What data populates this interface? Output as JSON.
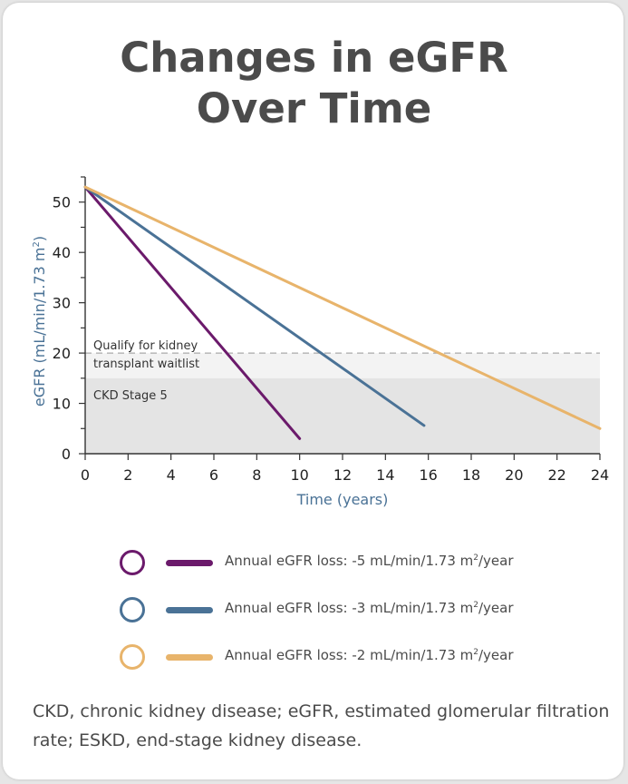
{
  "title_line1": "Changes in eGFR",
  "title_line2": "Over Time",
  "chart_data": {
    "type": "line",
    "xlabel": "Time (years)",
    "ylabel_main": "eGFR (mL/min/1.73 m",
    "ylabel_sup": "2",
    "ylabel_tail": ")",
    "xlim": [
      0,
      24
    ],
    "ylim": [
      0,
      55
    ],
    "xticks": [
      0,
      2,
      4,
      6,
      8,
      10,
      12,
      14,
      16,
      18,
      20,
      22,
      24
    ],
    "yticks": [
      0,
      10,
      20,
      30,
      40,
      50
    ],
    "series": [
      {
        "points": [
          [
            0,
            53
          ],
          [
            10,
            3
          ]
        ],
        "color": "#6b1a6b"
      },
      {
        "points": [
          [
            0,
            53
          ],
          [
            15.8,
            5.6
          ]
        ],
        "color": "#4a7296"
      },
      {
        "points": [
          [
            0,
            53
          ],
          [
            24,
            5
          ]
        ],
        "color": "#e8b46b"
      }
    ],
    "regions": [
      {
        "label_line1": "Qualify for kidney",
        "label_line2": "transplant waitlist",
        "y0": 15,
        "y1": 20,
        "color": "#f3f3f3"
      },
      {
        "label_line1": "CKD Stage 5",
        "y0": 0,
        "y1": 15,
        "color": "#e4e4e4"
      }
    ],
    "threshold_line": {
      "y": 20,
      "color": "#aaaaaa"
    }
  },
  "legend": [
    {
      "prefix": "Annual eGFR loss: -5 mL/min/1.73 m",
      "sup": "2",
      "suffix": "/year",
      "color": "#6b1a6b"
    },
    {
      "prefix": "Annual eGFR loss: -3 mL/min/1.73 m",
      "sup": "2",
      "suffix": "/year",
      "color": "#4a7296"
    },
    {
      "prefix": "Annual eGFR loss: -2 mL/min/1.73 m",
      "sup": "2",
      "suffix": "/year",
      "color": "#e8b46b"
    }
  ],
  "footnote": "CKD, chronic kidney disease; eGFR, estimated glomerular filtration rate; ESKD, end-stage kidney disease."
}
